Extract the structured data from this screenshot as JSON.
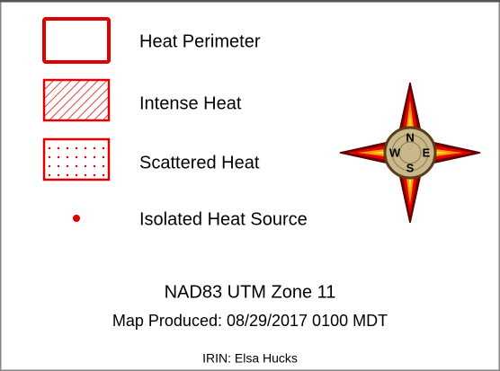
{
  "legend": {
    "items": [
      {
        "label": "Heat Perimeter"
      },
      {
        "label": "Intense Heat"
      },
      {
        "label": "Scattered Heat"
      },
      {
        "label": "Isolated Heat Source"
      }
    ]
  },
  "compass": {
    "north": "N",
    "east": "E",
    "south": "S",
    "west": "W"
  },
  "footer": {
    "projection": "NAD83 UTM Zone 11",
    "produced": "Map Produced: 08/29/2017 0100 MDT",
    "author": "IRIN: Elsa Hucks"
  }
}
